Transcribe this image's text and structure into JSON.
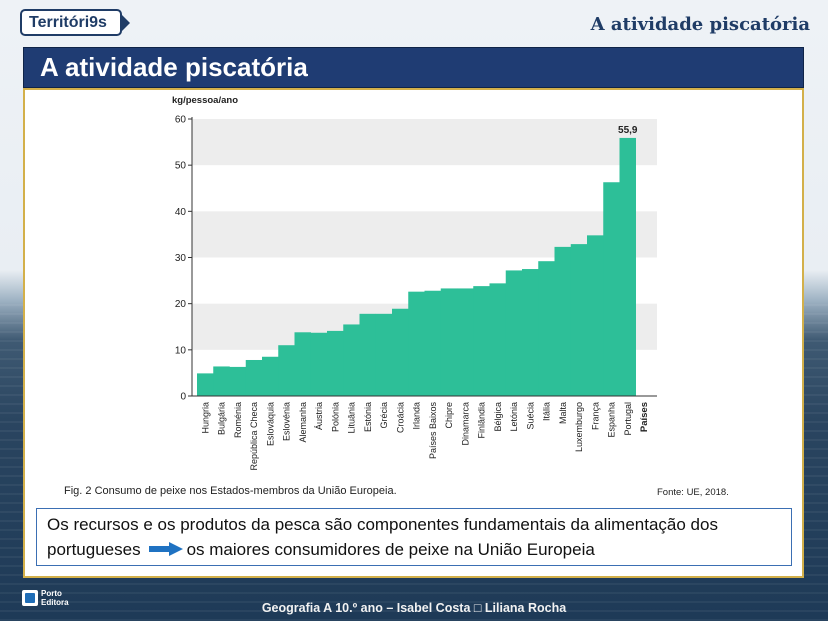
{
  "header": {
    "logo_text": "Territóri9s",
    "title": "A atividade piscatória"
  },
  "slide_title": "A atividade piscatória",
  "chart_data": {
    "type": "bar",
    "ylabel": "kg/pessoa/ano",
    "xlabel": "Países",
    "ylim": [
      0,
      60
    ],
    "yticks": [
      0,
      10,
      20,
      30,
      40,
      50,
      60
    ],
    "categories": [
      "Hungria",
      "Bulgária",
      "Roménia",
      "República Checa",
      "Eslováquia",
      "Eslovénia",
      "Alemanha",
      "Áustria",
      "Polónia",
      "Lituânia",
      "Estónia",
      "Grécia",
      "Croácia",
      "Irlanda",
      "Países Baixos",
      "Chipre",
      "Dinamarca",
      "Finlândia",
      "Bélgica",
      "Letónia",
      "Suécia",
      "Itália",
      "Malta",
      "Luxemburgo",
      "França",
      "Espanha",
      "Portugal"
    ],
    "values": [
      4.9,
      6.4,
      6.3,
      7.8,
      8.5,
      11.0,
      13.8,
      13.7,
      14.1,
      15.5,
      17.8,
      17.8,
      18.9,
      22.6,
      22.8,
      23.3,
      23.3,
      23.8,
      24.4,
      27.2,
      27.5,
      29.2,
      32.3,
      32.9,
      34.8,
      46.3,
      55.9
    ],
    "annotation": {
      "category": "Portugal",
      "text": "55,9"
    },
    "bar_color": "#2dbf98",
    "band_color": "#ededed"
  },
  "caption": "Fig. 2 Consumo de peixe nos Estados-membros da União Europeia.",
  "source": "Fonte: UE, 2018.",
  "textbox": {
    "line1": "Os recursos e os produtos da pesca são componentes fundamentais da alimentação dos",
    "line2_start": "portugueses",
    "arrow_icon": "right-arrow-icon",
    "line2_end": "os maiores consumidores de peixe na União Europeia"
  },
  "footer": {
    "publisher": [
      "Porto",
      "Editora"
    ],
    "text": "Geografia A 10.º ano – Isabel Costa □ Liliana Rocha"
  },
  "colors": {
    "title_bar": "#1f3c73",
    "accent": "#1f3c66",
    "frame": "#d3b04a"
  }
}
